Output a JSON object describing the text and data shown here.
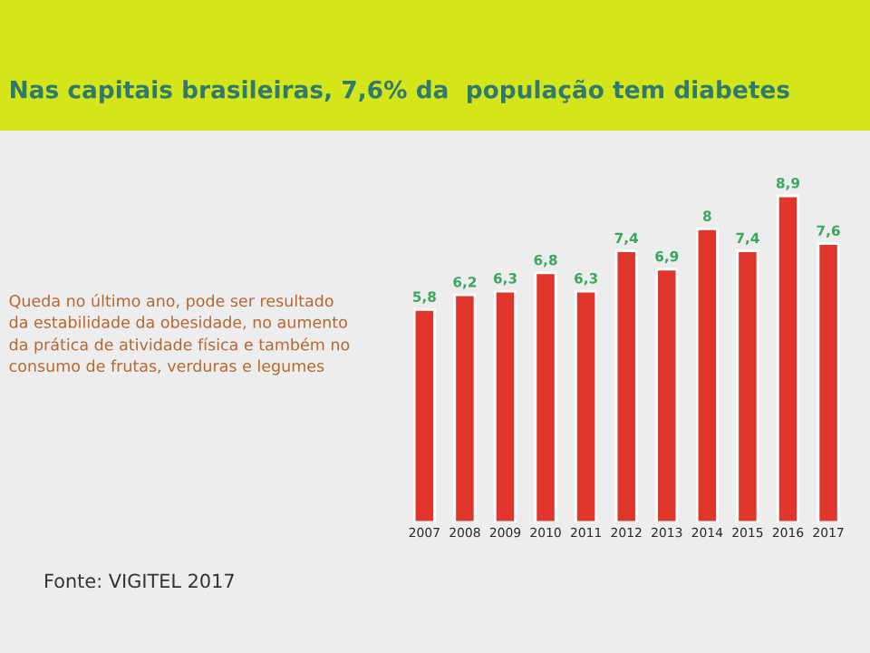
{
  "chart_data": {
    "type": "bar",
    "title": "Nas capitais brasileiras, 7,6% da  população tem diabetes",
    "categories": [
      "2007",
      "2008",
      "2009",
      "2010",
      "2011",
      "2012",
      "2013",
      "2014",
      "2015",
      "2016",
      "2017"
    ],
    "values": [
      5.8,
      6.2,
      6.3,
      6.8,
      6.3,
      7.4,
      6.9,
      8,
      7.4,
      8.9,
      7.6
    ],
    "value_labels": [
      "5,8",
      "6,2",
      "6,3",
      "6,8",
      "6,3",
      "7,4",
      "6,9",
      "8",
      "7,4",
      "8,9",
      "7,6"
    ],
    "color": "#e0352b",
    "annotations": [
      "Queda no último ano, pode ser resultado\nda estabilidade da obesidade, no aumento\nda prática de atividade física e também no consumo de frutas, verduras e legumes",
      "Fonte: VIGITEL 2017"
    ],
    "tick_labels": "x",
    "grid": false,
    "legend": false
  }
}
